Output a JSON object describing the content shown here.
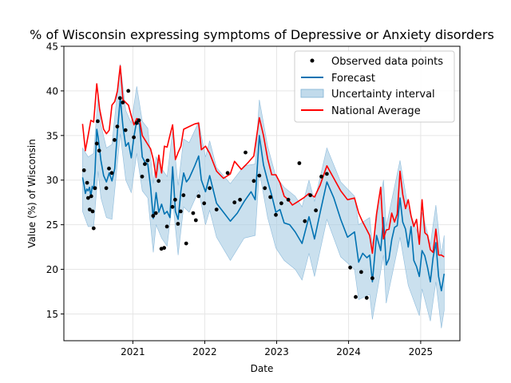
{
  "chart_data": {
    "type": "line",
    "title": "% of Wisconsin expressing symptoms of Depressive or Anxiety disorders",
    "xlabel": "Date",
    "ylabel": "Value (%) of Wisconsin",
    "xlim": [
      "2020-01-17",
      "2025-07-19"
    ],
    "ylim": [
      12,
      45
    ],
    "grid": true,
    "legend_position": "top-right",
    "x_ticks": [
      "2021-01-01",
      "2022-01-01",
      "2023-01-01",
      "2024-01-01",
      "2025-01-01"
    ],
    "x_tick_labels": [
      "2021",
      "2022",
      "2023",
      "2024",
      "2025"
    ],
    "y_ticks": [
      15,
      20,
      25,
      30,
      35,
      40,
      45
    ],
    "legend": {
      "observed": "Observed data points",
      "forecast": "Forecast",
      "interval": "Uncertainty interval",
      "national": "National Average"
    },
    "colors": {
      "observed": "#000000",
      "forecast": "#0072B2",
      "interval": "#a6cbe3",
      "national": "#ff0000",
      "grid": "#e6e6e6"
    },
    "observed": [
      [
        "2020-04-28",
        31.1
      ],
      [
        "2020-05-14",
        29.7
      ],
      [
        "2020-05-19",
        28.0
      ],
      [
        "2020-05-27",
        26.7
      ],
      [
        "2020-06-04",
        28.2
      ],
      [
        "2020-06-11",
        26.5
      ],
      [
        "2020-06-16",
        24.6
      ],
      [
        "2020-06-23",
        29.1
      ],
      [
        "2020-07-02",
        34.1
      ],
      [
        "2020-07-07",
        36.6
      ],
      [
        "2020-07-14",
        33.3
      ],
      [
        "2020-08-19",
        29.1
      ],
      [
        "2020-09-02",
        31.3
      ],
      [
        "2020-09-16",
        30.8
      ],
      [
        "2020-09-30",
        34.5
      ],
      [
        "2020-10-14",
        36.0
      ],
      [
        "2020-10-28",
        39.2
      ],
      [
        "2020-11-11",
        38.7
      ],
      [
        "2020-11-25",
        35.6
      ],
      [
        "2020-12-09",
        40.0
      ],
      [
        "2021-01-06",
        34.8
      ],
      [
        "2021-01-20",
        36.4
      ],
      [
        "2021-02-01",
        36.7
      ],
      [
        "2021-02-17",
        30.4
      ],
      [
        "2021-03-03",
        31.8
      ],
      [
        "2021-03-17",
        32.2
      ],
      [
        "2021-04-14",
        26.0
      ],
      [
        "2021-04-28",
        26.3
      ],
      [
        "2021-05-12",
        29.9
      ],
      [
        "2021-05-26",
        22.3
      ],
      [
        "2021-06-09",
        22.4
      ],
      [
        "2021-06-23",
        24.8
      ],
      [
        "2021-07-21",
        27.0
      ],
      [
        "2021-08-04",
        27.8
      ],
      [
        "2021-08-18",
        25.1
      ],
      [
        "2021-09-01",
        26.5
      ],
      [
        "2021-09-15",
        28.3
      ],
      [
        "2021-09-29",
        22.9
      ],
      [
        "2021-11-03",
        26.3
      ],
      [
        "2021-11-17",
        25.5
      ],
      [
        "2021-12-01",
        28.2
      ],
      [
        "2021-12-29",
        27.4
      ],
      [
        "2022-01-26",
        29.1
      ],
      [
        "2022-03-02",
        26.7
      ],
      [
        "2022-04-27",
        30.8
      ],
      [
        "2022-06-01",
        27.5
      ],
      [
        "2022-06-29",
        27.8
      ],
      [
        "2022-07-27",
        33.1
      ],
      [
        "2022-09-07",
        29.9
      ],
      [
        "2022-10-05",
        30.5
      ],
      [
        "2022-11-02",
        29.1
      ],
      [
        "2022-11-30",
        28.1
      ],
      [
        "2022-12-28",
        26.1
      ],
      [
        "2023-01-25",
        27.4
      ],
      [
        "2023-03-01",
        27.8
      ],
      [
        "2023-04-26",
        31.9
      ],
      [
        "2023-05-24",
        25.4
      ],
      [
        "2023-06-21",
        28.3
      ],
      [
        "2023-07-19",
        26.6
      ],
      [
        "2023-08-16",
        30.4
      ],
      [
        "2023-09-13",
        30.7
      ],
      [
        "2024-01-09",
        20.2
      ],
      [
        "2024-02-06",
        16.9
      ],
      [
        "2024-03-05",
        19.7
      ],
      [
        "2024-04-02",
        16.8
      ],
      [
        "2024-05-01",
        19.0
      ]
    ],
    "forecast": [
      [
        "2020-04-21",
        30.3
      ],
      [
        "2020-04-28",
        29.5
      ],
      [
        "2020-05-05",
        28.5
      ],
      [
        "2020-05-12",
        29.0
      ],
      [
        "2020-05-19",
        28.8
      ],
      [
        "2020-05-26",
        29.2
      ],
      [
        "2020-06-02",
        28.2
      ],
      [
        "2020-06-09",
        29.3
      ],
      [
        "2020-06-16",
        29.0
      ],
      [
        "2020-06-23",
        31.0
      ],
      [
        "2020-07-02",
        35.7
      ],
      [
        "2020-07-09",
        34.8
      ],
      [
        "2020-07-16",
        33.5
      ],
      [
        "2020-07-23",
        32.2
      ],
      [
        "2020-08-06",
        30.5
      ],
      [
        "2020-08-20",
        29.8
      ],
      [
        "2020-09-03",
        30.8
      ],
      [
        "2020-09-17",
        29.9
      ],
      [
        "2020-10-01",
        31.3
      ],
      [
        "2020-10-15",
        35.5
      ],
      [
        "2020-10-29",
        39.2
      ],
      [
        "2020-11-12",
        36.0
      ],
      [
        "2020-11-26",
        33.8
      ],
      [
        "2020-12-10",
        34.2
      ],
      [
        "2020-12-24",
        32.5
      ],
      [
        "2021-01-07",
        34.9
      ],
      [
        "2021-01-21",
        36.7
      ],
      [
        "2021-02-04",
        36.2
      ],
      [
        "2021-02-18",
        32.6
      ],
      [
        "2021-03-04",
        32.0
      ],
      [
        "2021-03-18",
        31.8
      ],
      [
        "2021-04-01",
        29.2
      ],
      [
        "2021-04-15",
        25.7
      ],
      [
        "2021-04-29",
        28.6
      ],
      [
        "2021-05-13",
        26.4
      ],
      [
        "2021-05-27",
        27.3
      ],
      [
        "2021-06-10",
        26.2
      ],
      [
        "2021-06-24",
        26.5
      ],
      [
        "2021-07-08",
        25.8
      ],
      [
        "2021-07-22",
        31.5
      ],
      [
        "2021-08-05",
        26.5
      ],
      [
        "2021-08-19",
        25.6
      ],
      [
        "2021-09-02",
        28.8
      ],
      [
        "2021-09-16",
        30.8
      ],
      [
        "2021-09-30",
        29.8
      ],
      [
        "2021-10-14",
        30.2
      ],
      [
        "2021-11-11",
        31.6
      ],
      [
        "2021-12-01",
        32.7
      ],
      [
        "2021-12-15",
        30.0
      ],
      [
        "2022-01-05",
        28.7
      ],
      [
        "2022-01-26",
        30.5
      ],
      [
        "2022-03-02",
        27.4
      ],
      [
        "2022-04-06",
        26.4
      ],
      [
        "2022-05-11",
        25.4
      ],
      [
        "2022-06-15",
        26.3
      ],
      [
        "2022-07-20",
        27.6
      ],
      [
        "2022-08-24",
        28.7
      ],
      [
        "2022-09-14",
        27.8
      ],
      [
        "2022-10-05",
        35.0
      ],
      [
        "2022-10-26",
        31.7
      ],
      [
        "2022-11-16",
        29.9
      ],
      [
        "2022-12-07",
        28.3
      ],
      [
        "2022-12-28",
        26.4
      ],
      [
        "2023-01-18",
        26.7
      ],
      [
        "2023-02-08",
        25.2
      ],
      [
        "2023-03-08",
        25.0
      ],
      [
        "2023-04-05",
        24.2
      ],
      [
        "2023-05-10",
        22.9
      ],
      [
        "2023-06-14",
        25.9
      ],
      [
        "2023-07-12",
        23.4
      ],
      [
        "2023-08-09",
        26.3
      ],
      [
        "2023-09-13",
        29.8
      ],
      [
        "2023-10-18",
        28.0
      ],
      [
        "2023-11-22",
        25.6
      ],
      [
        "2023-12-27",
        23.6
      ],
      [
        "2024-01-31",
        24.2
      ],
      [
        "2024-02-21",
        20.8
      ],
      [
        "2024-03-13",
        21.8
      ],
      [
        "2024-04-03",
        21.3
      ],
      [
        "2024-04-17",
        21.6
      ],
      [
        "2024-05-01",
        18.6
      ],
      [
        "2024-05-22",
        23.8
      ],
      [
        "2024-06-12",
        22.1
      ],
      [
        "2024-06-26",
        25.8
      ],
      [
        "2024-07-10",
        20.5
      ],
      [
        "2024-07-24",
        21.2
      ],
      [
        "2024-08-07",
        23.3
      ],
      [
        "2024-08-21",
        24.7
      ],
      [
        "2024-09-04",
        24.9
      ],
      [
        "2024-09-18",
        28.0
      ],
      [
        "2024-10-02",
        25.3
      ],
      [
        "2024-10-16",
        24.5
      ],
      [
        "2024-10-30",
        22.5
      ],
      [
        "2024-11-13",
        24.8
      ],
      [
        "2024-11-27",
        21.0
      ],
      [
        "2024-12-11",
        20.3
      ],
      [
        "2024-12-25",
        19.2
      ],
      [
        "2025-01-08",
        22.1
      ],
      [
        "2025-01-22",
        21.5
      ],
      [
        "2025-02-05",
        20.2
      ],
      [
        "2025-02-19",
        18.6
      ],
      [
        "2025-03-05",
        21.3
      ],
      [
        "2025-03-19",
        23.0
      ],
      [
        "2025-04-02",
        19.2
      ],
      [
        "2025-04-16",
        17.6
      ],
      [
        "2025-04-30",
        19.5
      ]
    ],
    "uncertainty_interval": [
      [
        "2020-04-21",
        26.5,
        33.6
      ],
      [
        "2020-05-19",
        24.8,
        32.6
      ],
      [
        "2020-06-16",
        24.8,
        33.0
      ],
      [
        "2020-07-09",
        31.0,
        39.6
      ],
      [
        "2020-07-23",
        28.0,
        36.2
      ],
      [
        "2020-08-20",
        25.8,
        33.6
      ],
      [
        "2020-09-17",
        25.6,
        34.0
      ],
      [
        "2020-10-29",
        35.2,
        43.0
      ],
      [
        "2020-11-26",
        30.0,
        37.8
      ],
      [
        "2020-12-24",
        28.6,
        36.4
      ],
      [
        "2021-01-21",
        33.0,
        40.5
      ],
      [
        "2021-02-18",
        28.8,
        36.6
      ],
      [
        "2021-03-18",
        28.0,
        35.8
      ],
      [
        "2021-04-15",
        21.9,
        29.6
      ],
      [
        "2021-04-29",
        25.0,
        32.6
      ],
      [
        "2021-05-27",
        23.5,
        31.3
      ],
      [
        "2021-06-24",
        22.6,
        30.4
      ],
      [
        "2021-07-22",
        27.8,
        35.5
      ],
      [
        "2021-08-19",
        21.6,
        29.4
      ],
      [
        "2021-09-16",
        27.0,
        34.6
      ],
      [
        "2021-10-14",
        26.4,
        34.2
      ],
      [
        "2021-12-01",
        28.8,
        36.5
      ],
      [
        "2022-01-05",
        25.0,
        32.6
      ],
      [
        "2022-01-26",
        26.6,
        34.4
      ],
      [
        "2022-03-02",
        23.6,
        31.4
      ],
      [
        "2022-05-11",
        21.0,
        29.6
      ],
      [
        "2022-07-20",
        23.5,
        31.6
      ],
      [
        "2022-09-14",
        23.8,
        31.8
      ],
      [
        "2022-10-05",
        31.0,
        39.0
      ],
      [
        "2022-11-16",
        25.8,
        33.8
      ],
      [
        "2022-12-28",
        22.4,
        30.4
      ],
      [
        "2023-02-08",
        21.0,
        29.2
      ],
      [
        "2023-04-05",
        20.0,
        28.2
      ],
      [
        "2023-05-10",
        18.8,
        27.0
      ],
      [
        "2023-06-14",
        21.8,
        30.0
      ],
      [
        "2023-07-12",
        19.2,
        27.6
      ],
      [
        "2023-09-13",
        25.6,
        33.6
      ],
      [
        "2023-11-22",
        21.4,
        29.8
      ],
      [
        "2024-01-31",
        20.0,
        28.2
      ],
      [
        "2024-02-21",
        16.6,
        25.0
      ],
      [
        "2024-04-17",
        17.2,
        25.8
      ],
      [
        "2024-05-01",
        14.4,
        22.8
      ],
      [
        "2024-06-26",
        21.6,
        30.0
      ],
      [
        "2024-07-10",
        16.2,
        24.8
      ],
      [
        "2024-09-18",
        23.6,
        32.2
      ],
      [
        "2024-10-30",
        18.2,
        26.8
      ],
      [
        "2024-12-25",
        14.8,
        23.6
      ],
      [
        "2025-01-08",
        17.8,
        26.4
      ],
      [
        "2025-02-19",
        14.2,
        22.8
      ],
      [
        "2025-03-19",
        18.6,
        27.2
      ],
      [
        "2025-04-16",
        13.4,
        21.6
      ],
      [
        "2025-04-30",
        15.4,
        23.8
      ]
    ],
    "national_average": [
      [
        "2020-04-21",
        36.3
      ],
      [
        "2020-05-05",
        33.3
      ],
      [
        "2020-05-19",
        35.0
      ],
      [
        "2020-06-02",
        36.7
      ],
      [
        "2020-06-16",
        36.5
      ],
      [
        "2020-07-02",
        40.8
      ],
      [
        "2020-07-16",
        38.0
      ],
      [
        "2020-08-06",
        35.7
      ],
      [
        "2020-08-20",
        35.2
      ],
      [
        "2020-09-03",
        35.6
      ],
      [
        "2020-09-17",
        38.4
      ],
      [
        "2020-10-01",
        38.8
      ],
      [
        "2020-10-15",
        40.0
      ],
      [
        "2020-10-29",
        42.8
      ],
      [
        "2020-11-12",
        39.0
      ],
      [
        "2020-12-10",
        38.4
      ],
      [
        "2020-12-24",
        37.2
      ],
      [
        "2021-01-07",
        36.2
      ],
      [
        "2021-01-21",
        36.9
      ],
      [
        "2021-02-04",
        36.8
      ],
      [
        "2021-02-18",
        35.0
      ],
      [
        "2021-03-18",
        34.0
      ],
      [
        "2021-04-01",
        33.5
      ],
      [
        "2021-04-15",
        32.3
      ],
      [
        "2021-04-29",
        30.3
      ],
      [
        "2021-05-13",
        32.8
      ],
      [
        "2021-05-27",
        30.8
      ],
      [
        "2021-06-10",
        33.8
      ],
      [
        "2021-06-24",
        33.7
      ],
      [
        "2021-07-08",
        35.0
      ],
      [
        "2021-07-22",
        36.2
      ],
      [
        "2021-08-05",
        32.3
      ],
      [
        "2021-08-19",
        33.1
      ],
      [
        "2021-09-02",
        33.8
      ],
      [
        "2021-09-16",
        35.7
      ],
      [
        "2021-10-14",
        36.0
      ],
      [
        "2021-11-11",
        36.3
      ],
      [
        "2021-12-01",
        36.4
      ],
      [
        "2021-12-15",
        33.4
      ],
      [
        "2022-01-05",
        33.8
      ],
      [
        "2022-01-26",
        33.0
      ],
      [
        "2022-03-02",
        31.0
      ],
      [
        "2022-04-06",
        30.2
      ],
      [
        "2022-05-11",
        30.7
      ],
      [
        "2022-06-01",
        32.1
      ],
      [
        "2022-07-06",
        31.2
      ],
      [
        "2022-08-10",
        32.0
      ],
      [
        "2022-09-07",
        32.7
      ],
      [
        "2022-10-05",
        37.0
      ],
      [
        "2022-10-26",
        35.0
      ],
      [
        "2022-11-16",
        32.4
      ],
      [
        "2022-12-07",
        30.6
      ],
      [
        "2022-12-28",
        30.6
      ],
      [
        "2023-01-18",
        29.7
      ],
      [
        "2023-02-08",
        28.2
      ],
      [
        "2023-03-01",
        27.8
      ],
      [
        "2023-03-22",
        27.2
      ],
      [
        "2023-04-19",
        27.6
      ],
      [
        "2023-05-17",
        28.0
      ],
      [
        "2023-06-14",
        28.5
      ],
      [
        "2023-07-12",
        28.1
      ],
      [
        "2023-08-09",
        29.4
      ],
      [
        "2023-09-13",
        31.6
      ],
      [
        "2023-10-18",
        30.2
      ],
      [
        "2023-11-22",
        28.8
      ],
      [
        "2023-12-27",
        27.8
      ],
      [
        "2024-01-31",
        28.0
      ],
      [
        "2024-02-21",
        26.3
      ],
      [
        "2024-03-13",
        25.3
      ],
      [
        "2024-04-03",
        24.4
      ],
      [
        "2024-04-17",
        23.8
      ],
      [
        "2024-05-01",
        21.8
      ],
      [
        "2024-05-22",
        26.2
      ],
      [
        "2024-06-12",
        29.2
      ],
      [
        "2024-06-26",
        23.4
      ],
      [
        "2024-07-10",
        24.4
      ],
      [
        "2024-07-24",
        24.5
      ],
      [
        "2024-08-07",
        26.3
      ],
      [
        "2024-08-21",
        25.3
      ],
      [
        "2024-09-04",
        26.2
      ],
      [
        "2024-09-18",
        31.0
      ],
      [
        "2024-10-02",
        28.4
      ],
      [
        "2024-10-16",
        26.8
      ],
      [
        "2024-10-30",
        27.8
      ],
      [
        "2024-11-13",
        26.0
      ],
      [
        "2024-11-27",
        24.8
      ],
      [
        "2024-12-11",
        25.6
      ],
      [
        "2024-12-25",
        22.8
      ],
      [
        "2025-01-08",
        27.8
      ],
      [
        "2025-01-22",
        24.1
      ],
      [
        "2025-02-05",
        23.8
      ],
      [
        "2025-02-19",
        22.2
      ],
      [
        "2025-03-05",
        21.9
      ],
      [
        "2025-03-19",
        24.5
      ],
      [
        "2025-04-02",
        21.6
      ],
      [
        "2025-04-16",
        21.6
      ],
      [
        "2025-04-30",
        21.4
      ]
    ]
  }
}
